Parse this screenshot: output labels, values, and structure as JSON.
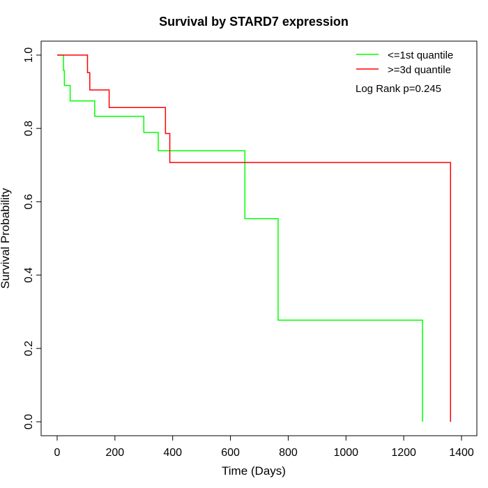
{
  "chart_data": {
    "type": "line",
    "title": "Survival by STARD7 expression",
    "xlabel": "Time (Days)",
    "ylabel": "Survival Probability",
    "xlim": [
      0,
      1400
    ],
    "ylim": [
      0,
      1.0
    ],
    "x_ticks": [
      "0",
      "200",
      "400",
      "600",
      "800",
      "1000",
      "1200",
      "1400"
    ],
    "y_ticks": [
      "0.0",
      "0.2",
      "0.4",
      "0.6",
      "0.8",
      "1.0"
    ],
    "legend_position": "top-right",
    "annotation": "Log Rank p=0.245",
    "series": [
      {
        "name": "<=1st quantile",
        "color": "#00ff00",
        "step_points": [
          [
            0,
            1.0
          ],
          [
            22,
            1.0
          ],
          [
            22,
            0.958
          ],
          [
            25,
            0.958
          ],
          [
            25,
            0.917
          ],
          [
            45,
            0.917
          ],
          [
            45,
            0.875
          ],
          [
            130,
            0.875
          ],
          [
            130,
            0.833
          ],
          [
            300,
            0.833
          ],
          [
            300,
            0.789
          ],
          [
            350,
            0.789
          ],
          [
            350,
            0.739
          ],
          [
            650,
            0.739
          ],
          [
            650,
            0.554
          ],
          [
            765,
            0.554
          ],
          [
            765,
            0.277
          ],
          [
            1265,
            0.277
          ],
          [
            1265,
            0.0
          ]
        ]
      },
      {
        "name": ">=3d quantile",
        "color": "#ff0000",
        "step_points": [
          [
            0,
            1.0
          ],
          [
            105,
            1.0
          ],
          [
            105,
            0.952
          ],
          [
            113,
            0.952
          ],
          [
            113,
            0.905
          ],
          [
            180,
            0.905
          ],
          [
            180,
            0.857
          ],
          [
            375,
            0.857
          ],
          [
            375,
            0.786
          ],
          [
            390,
            0.786
          ],
          [
            390,
            0.707
          ],
          [
            1362,
            0.707
          ],
          [
            1362,
            0.0
          ]
        ]
      }
    ]
  }
}
